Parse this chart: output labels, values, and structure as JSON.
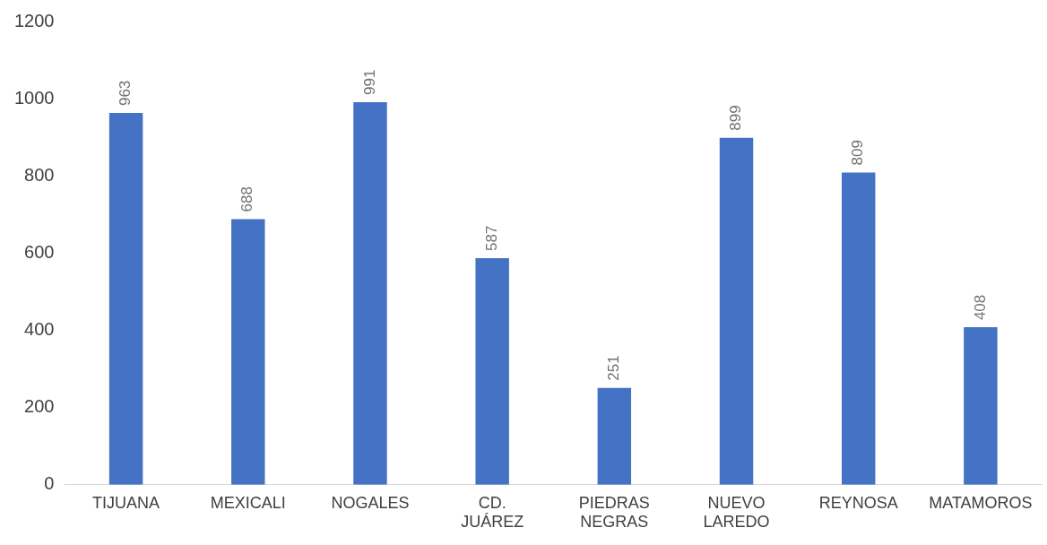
{
  "chart_data": {
    "type": "bar",
    "categories": [
      "TIJUANA",
      "MEXICALI",
      "NOGALES",
      "CD. JUÁREZ",
      "PIEDRAS NEGRAS",
      "NUEVO LAREDO",
      "REYNOSA",
      "MATAMOROS"
    ],
    "values": [
      963,
      688,
      991,
      587,
      251,
      899,
      809,
      408
    ],
    "color": "#4472c4",
    "ylim": [
      0,
      1200
    ],
    "yticks": [
      0,
      200,
      400,
      600,
      800,
      1000,
      1200
    ],
    "data_labels": true
  }
}
